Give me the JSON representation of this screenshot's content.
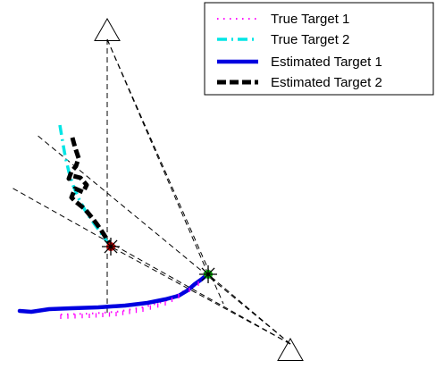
{
  "chart_data": {
    "type": "line",
    "title": "",
    "xlabel": "",
    "ylabel": "",
    "grid": false,
    "axes_visible": false,
    "legend_position": "top-right",
    "series": [
      {
        "name": "True Target 1",
        "style": "dotted",
        "color": "#ff00ff",
        "x": [
          68,
          100,
          130,
          160,
          185,
          200,
          212,
          222,
          232
        ],
        "y": [
          352,
          351,
          349,
          344,
          337,
          329,
          322,
          315,
          308
        ]
      },
      {
        "name": "True Target 2",
        "style": "dashdot",
        "color": "#00e5e5",
        "x": [
          67,
          70,
          73,
          77,
          82,
          88,
          95,
          103,
          111,
          118,
          124
        ],
        "y": [
          140,
          158,
          175,
          192,
          208,
          222,
          235,
          247,
          258,
          268,
          276
        ]
      },
      {
        "name": "Estimated Target 1",
        "style": "solid",
        "color": "#0000e0",
        "x": [
          22,
          35,
          55,
          80,
          110,
          140,
          165,
          185,
          200,
          210,
          218,
          225,
          230,
          233
        ],
        "y": [
          348,
          349,
          346,
          345,
          344,
          342,
          339,
          335,
          331,
          325,
          318,
          313,
          309,
          307
        ]
      },
      {
        "name": "Estimated Target 2",
        "style": "dashed",
        "color": "#000000",
        "x": [
          81,
          84,
          88,
          85,
          80,
          77,
          82,
          90,
          97,
          93,
          84,
          80,
          85,
          95,
          104,
          110,
          116,
          121,
          124
        ],
        "y": [
          154,
          165,
          177,
          186,
          192,
          200,
          197,
          199,
          207,
          215,
          211,
          221,
          226,
          234,
          245,
          253,
          262,
          270,
          276
        ]
      }
    ],
    "markers": [
      {
        "kind": "sensor-triangle",
        "x": 120,
        "y": 35
      },
      {
        "kind": "sensor-triangle",
        "x": 325,
        "y": 393
      },
      {
        "kind": "star",
        "color": "#000000",
        "fill": "#cc0000",
        "x": 124,
        "y": 276
      },
      {
        "kind": "star",
        "color": "#000000",
        "fill": "#00bb00",
        "x": 233,
        "y": 307
      }
    ],
    "bearing_lines": [
      {
        "x1": 120,
        "y1": 44,
        "x2": 120,
        "y2": 350
      },
      {
        "x1": 120,
        "y1": 44,
        "x2": 233,
        "y2": 307
      },
      {
        "x1": 120,
        "y1": 44,
        "x2": 250,
        "y2": 340
      },
      {
        "x1": 325,
        "y1": 385,
        "x2": 13,
        "y2": 210
      },
      {
        "x1": 325,
        "y1": 385,
        "x2": 40,
        "y2": 150
      },
      {
        "x1": 325,
        "y1": 385,
        "x2": 124,
        "y2": 276
      },
      {
        "x1": 325,
        "y1": 385,
        "x2": 233,
        "y2": 307
      }
    ]
  }
}
